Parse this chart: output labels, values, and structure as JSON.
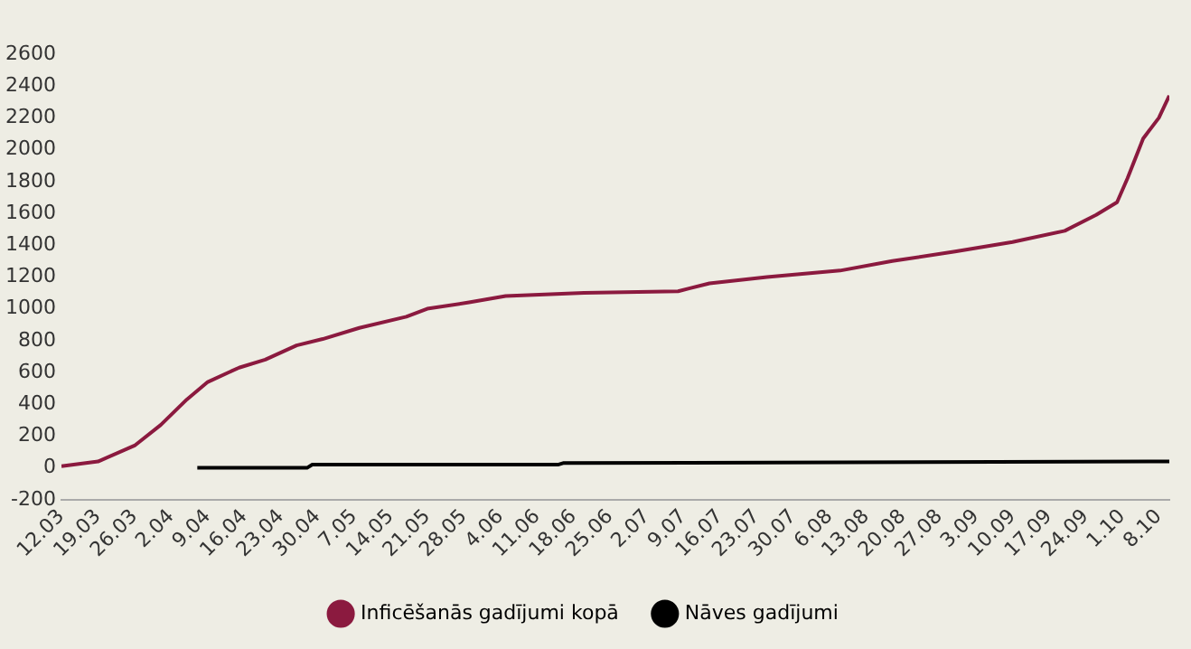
{
  "chart_data": {
    "type": "line",
    "legend": "bottom",
    "marker": "none",
    "line_style": "solid",
    "grid": false,
    "xlim": [
      "--03-12",
      "--10-10"
    ],
    "xticks": [
      {
        "value": "--03-12",
        "label": "12.03"
      },
      {
        "value": "--03-19",
        "label": "19.03"
      },
      {
        "value": "--03-26",
        "label": "26.03"
      },
      {
        "value": "--04-02",
        "label": "2.04"
      },
      {
        "value": "--04-09",
        "label": "9.04"
      },
      {
        "value": "--04-16",
        "label": "16.04"
      },
      {
        "value": "--04-23",
        "label": "23.04"
      },
      {
        "value": "--04-30",
        "label": "30.04"
      },
      {
        "value": "--05-07",
        "label": "7.05"
      },
      {
        "value": "--05-14",
        "label": "14.05"
      },
      {
        "value": "--05-21",
        "label": "21.05"
      },
      {
        "value": "--05-28",
        "label": "28.05"
      },
      {
        "value": "--06-04",
        "label": "4.06"
      },
      {
        "value": "--06-11",
        "label": "11.06"
      },
      {
        "value": "--06-18",
        "label": "18.06"
      },
      {
        "value": "--06-25",
        "label": "25.06"
      },
      {
        "value": "--07-02",
        "label": "2.07"
      },
      {
        "value": "--07-09",
        "label": "9.07"
      },
      {
        "value": "--07-16",
        "label": "16.07"
      },
      {
        "value": "--07-23",
        "label": "23.07"
      },
      {
        "value": "--07-30",
        "label": "30.07"
      },
      {
        "value": "--08-06",
        "label": "6.08"
      },
      {
        "value": "--08-13",
        "label": "13.08"
      },
      {
        "value": "--08-20",
        "label": "20.08"
      },
      {
        "value": "--08-27",
        "label": "27.08"
      },
      {
        "value": "--09-03",
        "label": "3.09"
      },
      {
        "value": "--09-10",
        "label": "10.09"
      },
      {
        "value": "--09-17",
        "label": "17.09"
      },
      {
        "value": "--09-24",
        "label": "24.09"
      },
      {
        "value": "--10-01",
        "label": "1.10"
      },
      {
        "value": "--10-08",
        "label": "8.10"
      }
    ],
    "ylim": [
      -200,
      2600
    ],
    "yticks": [
      -200,
      0,
      200,
      400,
      600,
      800,
      1000,
      1200,
      1400,
      1600,
      1800,
      2000,
      2200,
      2400,
      2600
    ],
    "series": [
      {
        "name": "Inficēšanās gadījumi kopā",
        "color": "#8b1a3f",
        "x": [
          "--03-12",
          "--03-19",
          "--03-26",
          "--03-31",
          "--04-05",
          "--04-09",
          "--04-15",
          "--04-20",
          "--04-26",
          "--05-01",
          "--05-08",
          "--05-17",
          "--05-21",
          "--05-29",
          "--06-05",
          "--06-20",
          "--07-08",
          "--07-14",
          "--07-25",
          "--08-08",
          "--08-18",
          "--08-30",
          "--09-10",
          "--09-20",
          "--09-26",
          "--09-30",
          "--10-02",
          "--10-05",
          "--10-08",
          "--10-10"
        ],
        "values": [
          10,
          40,
          140,
          270,
          430,
          540,
          630,
          680,
          770,
          810,
          880,
          950,
          1000,
          1040,
          1080,
          1100,
          1110,
          1160,
          1200,
          1240,
          1300,
          1360,
          1420,
          1490,
          1590,
          1670,
          1820,
          2070,
          2200,
          2340
        ]
      },
      {
        "name": "Nāves gadījumi",
        "color": "#000000",
        "x": [
          "--04-07",
          "--04-28",
          "--04-29",
          "--06-15",
          "--06-16",
          "--10-10"
        ],
        "values": [
          0,
          0,
          20,
          20,
          30,
          40
        ]
      }
    ]
  }
}
